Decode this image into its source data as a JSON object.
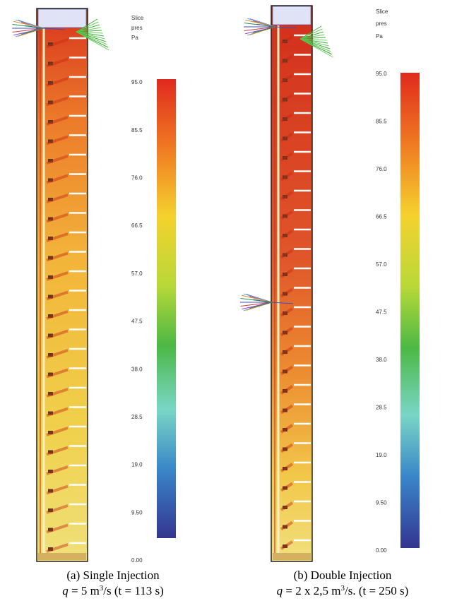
{
  "panels": [
    {
      "legend": [
        "Slice",
        "pres",
        "Pa"
      ],
      "colorbar_ticks": [
        "95.0",
        "85.5",
        "76.0",
        "66.5",
        "57.0",
        "47.5",
        "38.0",
        "28.5",
        "19.0",
        "9.50",
        "0.00"
      ],
      "caption": {
        "title": "(a) Single Injection",
        "formula": [
          "q",
          " = 5 m",
          "3",
          "/s (t = 113 s)"
        ]
      }
    },
    {
      "legend": [
        "Slice",
        "pres",
        "Pa"
      ],
      "colorbar_ticks": [
        "95.0",
        "85.5",
        "76.0",
        "66.5",
        "57.0",
        "47.5",
        "38.0",
        "28.5",
        "19.0",
        "9.50",
        "0.00"
      ],
      "caption": {
        "title": "(b) Double Injection",
        "formula": [
          "q",
          " = 2 x 2,5 m",
          "3",
          "/s. (t = 250 s)"
        ]
      }
    }
  ]
}
